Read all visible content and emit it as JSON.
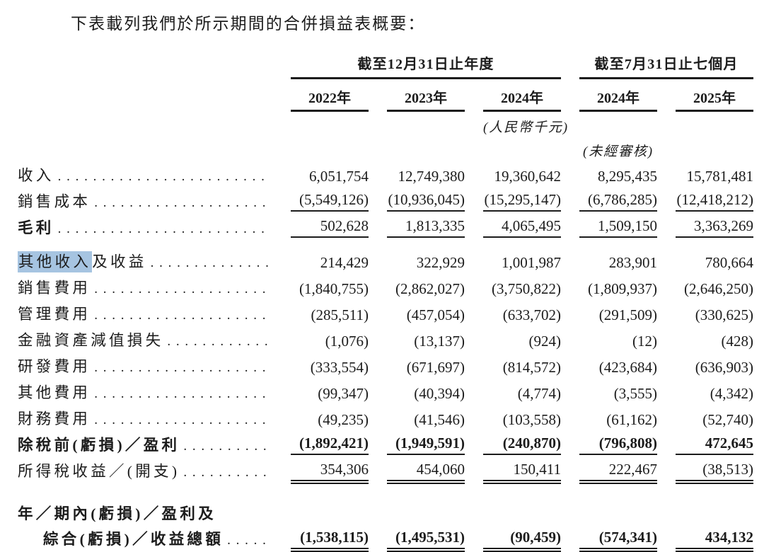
{
  "title": "下表載列我們於所示期間的合併損益表概要：",
  "colors": {
    "highlight": "#a6c4e1",
    "text": "#1c1c1c",
    "rule": "#1c1c1c"
  },
  "table": {
    "groups": [
      {
        "label": "截至12月31日止年度"
      },
      {
        "label": "截至7月31日止七個月"
      }
    ],
    "years": [
      "2022年",
      "2023年",
      "2024年",
      "2024年",
      "2025年"
    ],
    "unit_note": "(人民幣千元)",
    "unaudited_note": "(未經審核)",
    "rows": [
      {
        "label": "收入",
        "values": [
          "6,051,754",
          "12,749,380",
          "19,360,642",
          "8,295,435",
          "15,781,481"
        ]
      },
      {
        "label": "銷售成本",
        "rule": "single",
        "values": [
          "(5,549,126)",
          "(10,936,045)",
          "(15,295,147)",
          "(6,786,285)",
          "(12,418,212)"
        ]
      },
      {
        "label": "毛利",
        "bold_label": true,
        "rule": "single",
        "gap": "sm",
        "values": [
          "502,628",
          "1,813,335",
          "4,065,495",
          "1,509,150",
          "3,363,269"
        ]
      },
      {
        "label": "其他收入及收益",
        "highlight": "其他收入",
        "values": [
          "214,429",
          "322,929",
          "1,001,987",
          "283,901",
          "780,664"
        ]
      },
      {
        "label": "銷售費用",
        "values": [
          "(1,840,755)",
          "(2,862,027)",
          "(3,750,822)",
          "(1,809,937)",
          "(2,646,250)"
        ]
      },
      {
        "label": "管理費用",
        "values": [
          "(285,511)",
          "(457,054)",
          "(633,702)",
          "(291,509)",
          "(330,625)"
        ]
      },
      {
        "label": "金融資產減值損失",
        "values": [
          "(1,076)",
          "(13,137)",
          "(924)",
          "(12)",
          "(428)"
        ]
      },
      {
        "label": "研發費用",
        "values": [
          "(333,554)",
          "(671,697)",
          "(814,572)",
          "(423,684)",
          "(636,903)"
        ]
      },
      {
        "label": "其他費用",
        "values": [
          "(99,347)",
          "(40,394)",
          "(4,774)",
          "(3,555)",
          "(4,342)"
        ]
      },
      {
        "label": "財務費用",
        "values": [
          "(49,235)",
          "(41,546)",
          "(103,558)",
          "(61,162)",
          "(52,740)"
        ]
      },
      {
        "label": "除稅前(虧損)／盈利",
        "bold_label": true,
        "bold_values": true,
        "rule": "single",
        "values": [
          "(1,892,421)",
          "(1,949,591)",
          "(240,870)",
          "(796,808)",
          "472,645"
        ]
      },
      {
        "label": "所得稅收益／(開支)",
        "rule": "double",
        "gap": "lg",
        "values": [
          "354,306",
          "454,060",
          "150,411",
          "222,467",
          "(38,513)"
        ]
      },
      {
        "label": "年／期內(虧損)／盈利及",
        "label2": "綜合(虧損)／收益總額",
        "bold_label": true,
        "bold_values": true,
        "rule": "double",
        "values": [
          "(1,538,115)",
          "(1,495,531)",
          "(90,459)",
          "(574,341)",
          "434,132"
        ]
      }
    ]
  }
}
